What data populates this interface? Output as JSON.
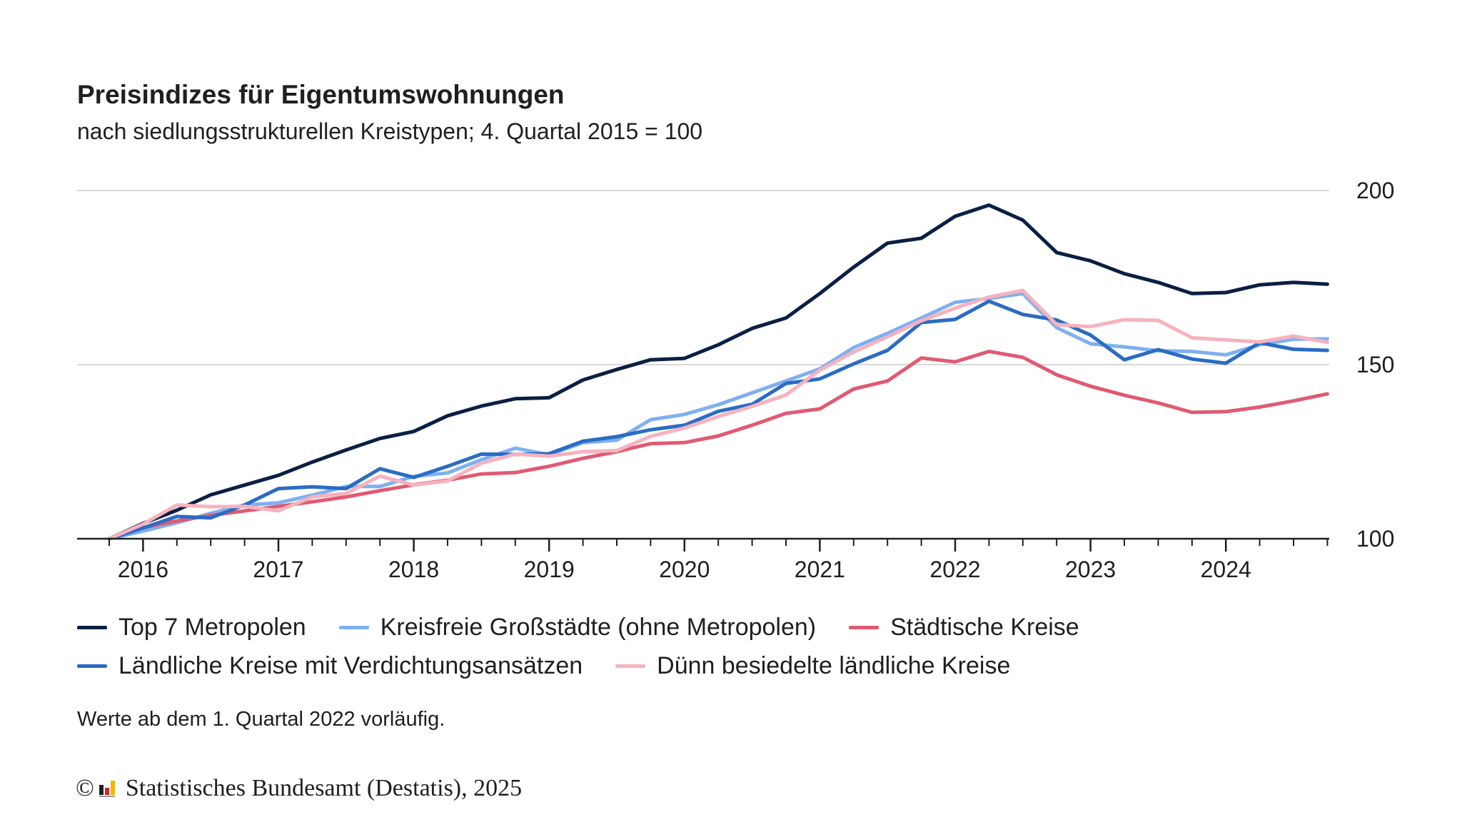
{
  "title": "Preisindizes für Eigentumswohnungen",
  "subtitle": "nach siedlungsstrukturellen Kreistypen; 4. Quartal 2015 = 100",
  "note": "Werte ab dem 1. Quartal 2022 vorläufig.",
  "source": {
    "copyright": "©",
    "text": "Statistisches Bundesamt (Destatis), 2025"
  },
  "chart_data": {
    "type": "line",
    "title": "Preisindizes für Eigentumswohnungen",
    "subtitle": "nach siedlungsstrukturellen Kreistypen; 4. Quartal 2015 = 100",
    "ylim": [
      100,
      200
    ],
    "yticks": [
      100,
      150,
      200
    ],
    "y_axis_position": "right",
    "grid": "horizontal",
    "legend_position": "bottom",
    "x_tick_labels": [
      "2016",
      "2017",
      "2018",
      "2019",
      "2020",
      "2021",
      "2022",
      "2023",
      "2024"
    ],
    "x": [
      "2015-Q4",
      "2016-Q1",
      "2016-Q2",
      "2016-Q3",
      "2016-Q4",
      "2017-Q1",
      "2017-Q2",
      "2017-Q3",
      "2017-Q4",
      "2018-Q1",
      "2018-Q2",
      "2018-Q3",
      "2018-Q4",
      "2019-Q1",
      "2019-Q2",
      "2019-Q3",
      "2019-Q4",
      "2020-Q1",
      "2020-Q2",
      "2020-Q3",
      "2020-Q4",
      "2021-Q1",
      "2021-Q2",
      "2021-Q3",
      "2021-Q4",
      "2022-Q1",
      "2022-Q2",
      "2022-Q3",
      "2022-Q4",
      "2023-Q1",
      "2023-Q2",
      "2023-Q3",
      "2023-Q4",
      "2024-Q1",
      "2024-Q2",
      "2024-Q3",
      "2024-Q4"
    ],
    "series": [
      {
        "name": "Top 7 Metropolen",
        "color": "#0b1f45",
        "values": [
          100,
          104.4,
          108.2,
          112.6,
          115.4,
          118.2,
          122,
          125.5,
          128.8,
          130.8,
          135.3,
          138.1,
          140.2,
          140.5,
          145.6,
          148.6,
          151.4,
          151.8,
          155.7,
          160.4,
          163.4,
          170.4,
          178,
          184.9,
          186.3,
          192.6,
          195.8,
          191.5,
          182.2,
          179.8,
          176.1,
          173.6,
          170.4,
          170.7,
          172.9,
          173.6,
          173.1
        ]
      },
      {
        "name": "Kreisfreie Großstädte (ohne Metropolen)",
        "color": "#7fb0f0",
        "values": [
          100,
          102.2,
          104.6,
          107.3,
          109.7,
          110.3,
          112.5,
          115,
          115,
          117.9,
          118.9,
          122.7,
          126,
          124.1,
          127.6,
          128.3,
          134.2,
          135.7,
          138.5,
          141.9,
          145.3,
          148.8,
          154.9,
          159,
          163.4,
          167.9,
          169,
          170.4,
          160.6,
          156,
          155.1,
          154,
          153.8,
          152.8,
          155.7,
          157.3,
          157.4
        ]
      },
      {
        "name": "Städtische Kreise",
        "color": "#e05a72",
        "values": [
          100,
          103.2,
          105.1,
          106.7,
          108,
          109.3,
          110.6,
          112,
          113.8,
          115.5,
          116.8,
          118.6,
          119,
          120.8,
          123.1,
          125,
          127.3,
          127.6,
          129.5,
          132.6,
          136,
          137.3,
          143,
          145.3,
          151.9,
          150.8,
          153.8,
          152.1,
          147.1,
          143.8,
          141.2,
          139,
          136.3,
          136.5,
          137.8,
          139.6,
          141.6
        ]
      },
      {
        "name": "Ländliche Kreise mit Verdichtungsansätzen",
        "color": "#2a6cc4",
        "values": [
          100,
          103.1,
          106.4,
          106,
          109.7,
          114.4,
          114.9,
          114.4,
          120.1,
          117.6,
          120.8,
          124.3,
          124.2,
          124.4,
          128,
          129.3,
          131.3,
          132.6,
          136.6,
          138.6,
          144.6,
          145.9,
          150.2,
          154.1,
          162.1,
          163,
          168.2,
          164.4,
          162.8,
          158.5,
          151.4,
          154.3,
          151.6,
          150.4,
          156.3,
          154.4,
          154.1
        ]
      },
      {
        "name": "Dünn besiedelte ländliche Kreise",
        "color": "#f7b2be",
        "values": [
          100,
          104.2,
          109.7,
          109.2,
          109.3,
          108,
          112,
          113,
          118,
          115.4,
          116.6,
          121.7,
          124.3,
          123.7,
          125,
          125.3,
          129.4,
          131.8,
          135.1,
          138,
          141.3,
          148.4,
          153.6,
          158,
          162.6,
          166.2,
          169.4,
          171.3,
          161.5,
          160.9,
          162.9,
          162.7,
          157.7,
          157.1,
          156.5,
          158.2,
          156.4
        ]
      }
    ]
  }
}
